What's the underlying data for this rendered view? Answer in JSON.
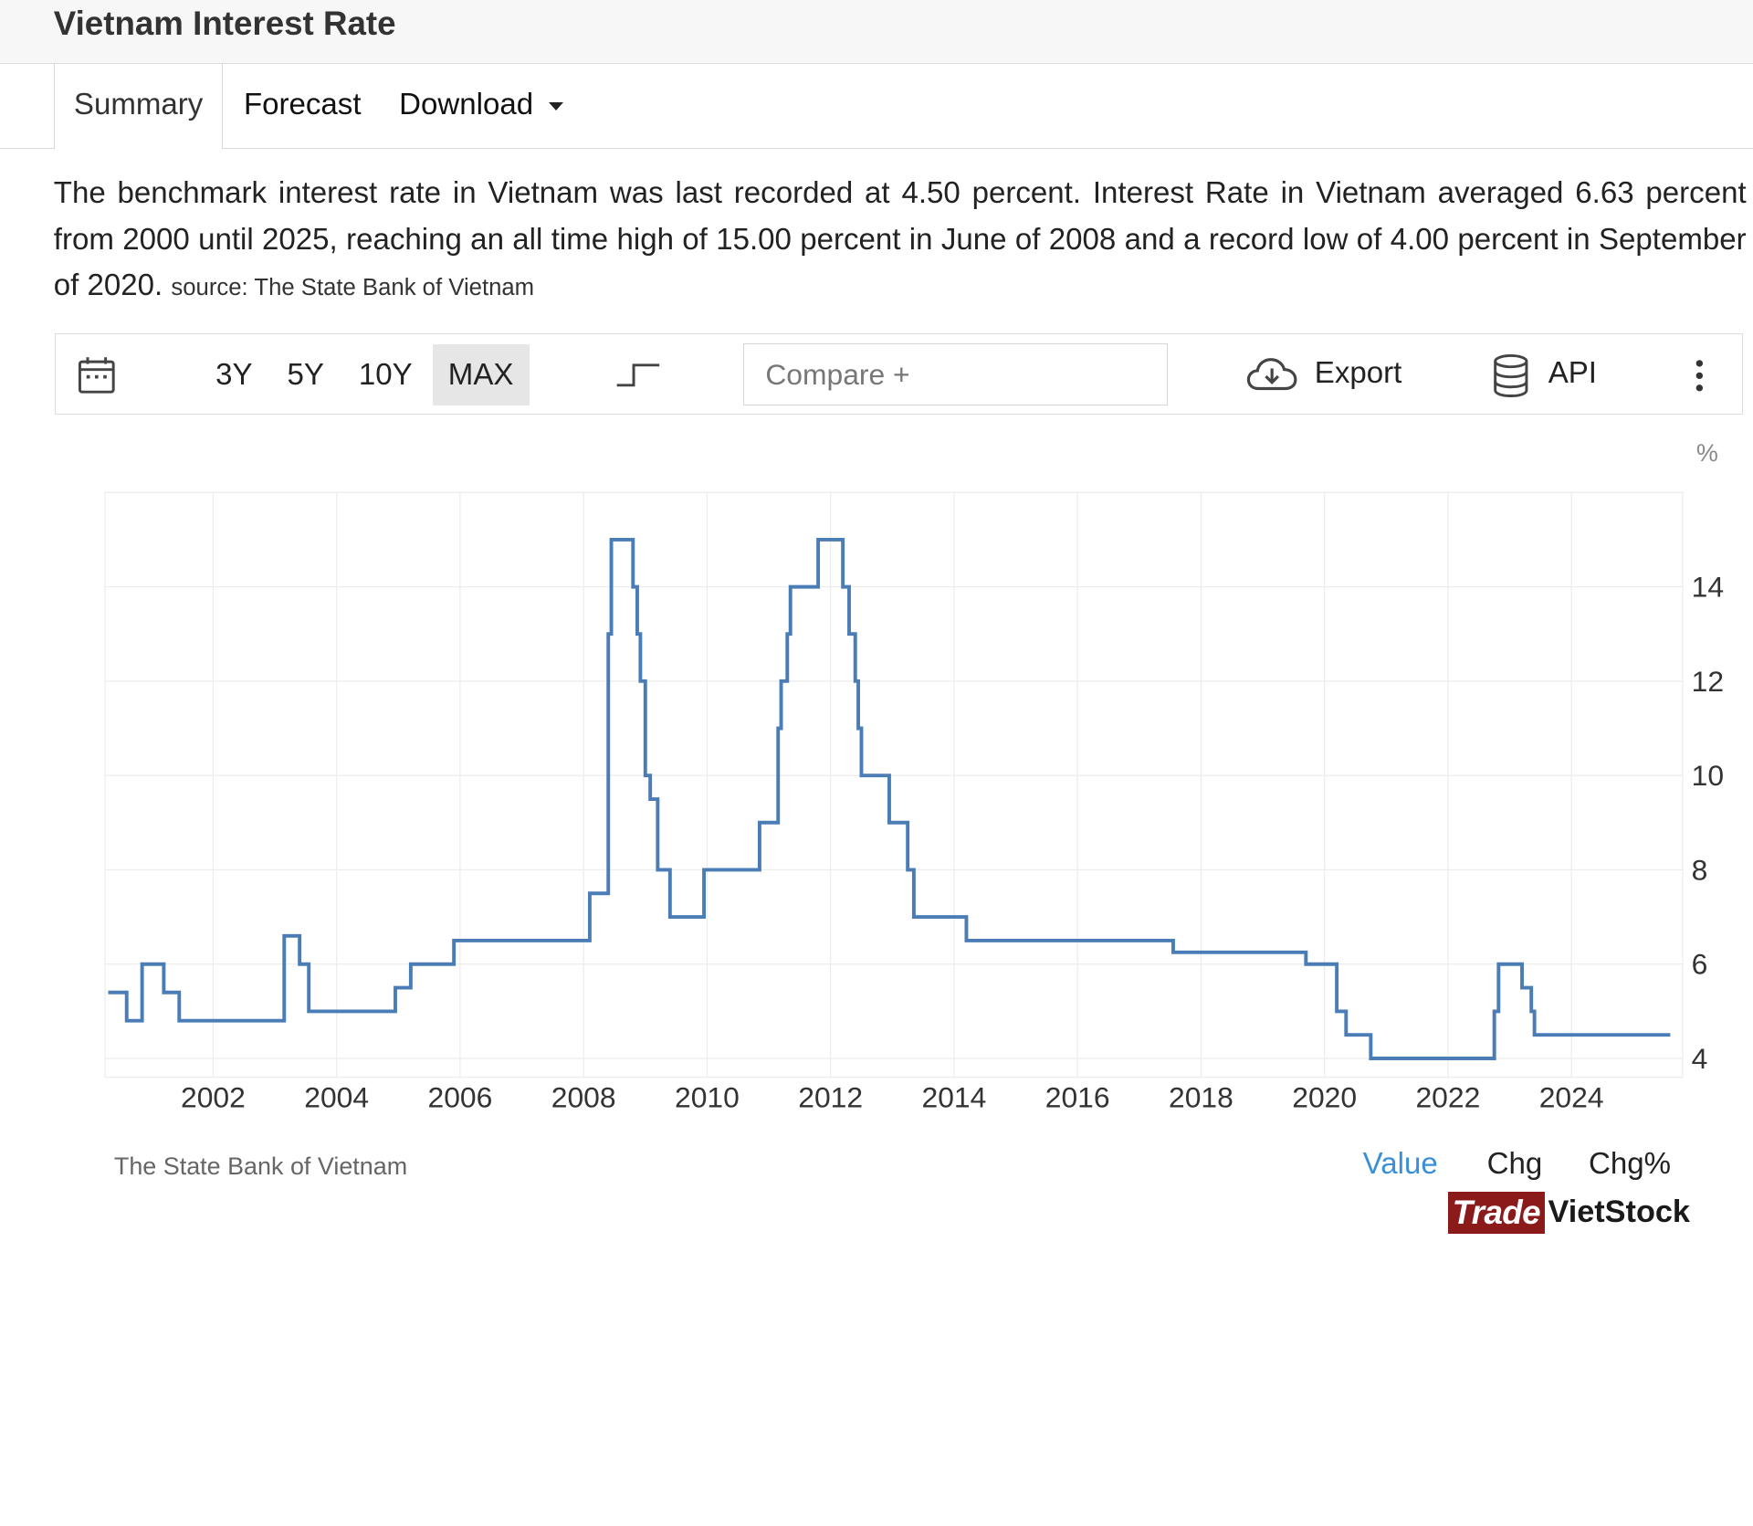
{
  "page_title": "Vietnam Interest Rate",
  "tabs": [
    {
      "label": "Summary"
    },
    {
      "label": "Forecast"
    },
    {
      "label": "Download"
    }
  ],
  "description": "The benchmark interest rate in Vietnam was last recorded at 4.50 percent. Interest Rate in Vietnam averaged 6.63 percent from 2000 until 2025, reaching an all time high of 15.00 percent in June of 2008 and a record low of 4.00 percent in September of 2020.",
  "source_text": "source: The State Bank of Vietnam",
  "toolbar": {
    "ranges": [
      "3Y",
      "5Y",
      "10Y",
      "MAX"
    ],
    "active_range": "MAX",
    "compare_placeholder": "Compare +",
    "export_label": "Export",
    "api_label": "API",
    "icons": [
      "calendar-icon",
      "step-chart-icon",
      "cloud-download-icon",
      "database-icon",
      "more-vertical-icon"
    ]
  },
  "chart_footer": {
    "source": "The State Bank of Vietnam",
    "value_tab": "Value",
    "chg_tab": "Chg",
    "chg_pct_tab": "Chg%"
  },
  "brand": {
    "part1": "Trade",
    "part2": "VietStock"
  },
  "colors": {
    "line": "#4a7db5",
    "active_tab": "#3a8fd8",
    "brand_red": "#8b1a1a"
  },
  "chart_data": {
    "type": "line",
    "step": true,
    "unit": "%",
    "x_ticks": [
      "2002",
      "2004",
      "2006",
      "2008",
      "2010",
      "2012",
      "2014",
      "2016",
      "2018",
      "2020",
      "2022",
      "2024"
    ],
    "y_ticks": [
      "4",
      "6",
      "8",
      "10",
      "12",
      "14"
    ],
    "xlim": [
      2000.25,
      2025.8
    ],
    "ylim": [
      3.6,
      16.0
    ],
    "grid": true,
    "series": [
      {
        "points": [
          [
            2000.3,
            5.4
          ],
          [
            2000.6,
            4.8
          ],
          [
            2000.85,
            6.0
          ],
          [
            2001.2,
            5.4
          ],
          [
            2001.45,
            4.8
          ],
          [
            2003.15,
            6.6
          ],
          [
            2003.4,
            6.0
          ],
          [
            2003.55,
            5.0
          ],
          [
            2004.95,
            5.5
          ],
          [
            2005.2,
            6.0
          ],
          [
            2005.9,
            6.5
          ],
          [
            2008.1,
            7.5
          ],
          [
            2008.4,
            13.0
          ],
          [
            2008.45,
            15.0
          ],
          [
            2008.8,
            14.0
          ],
          [
            2008.87,
            13.0
          ],
          [
            2008.92,
            12.0
          ],
          [
            2009.0,
            10.0
          ],
          [
            2009.08,
            9.5
          ],
          [
            2009.2,
            8.0
          ],
          [
            2009.4,
            7.0
          ],
          [
            2009.95,
            8.0
          ],
          [
            2010.85,
            9.0
          ],
          [
            2011.15,
            11.0
          ],
          [
            2011.2,
            12.0
          ],
          [
            2011.3,
            13.0
          ],
          [
            2011.35,
            14.0
          ],
          [
            2011.8,
            15.0
          ],
          [
            2012.2,
            14.0
          ],
          [
            2012.3,
            13.0
          ],
          [
            2012.4,
            12.0
          ],
          [
            2012.45,
            11.0
          ],
          [
            2012.5,
            10.0
          ],
          [
            2012.95,
            9.0
          ],
          [
            2013.25,
            8.0
          ],
          [
            2013.35,
            7.0
          ],
          [
            2014.2,
            6.5
          ],
          [
            2017.55,
            6.25
          ],
          [
            2019.7,
            6.0
          ],
          [
            2020.2,
            5.0
          ],
          [
            2020.35,
            4.5
          ],
          [
            2020.75,
            4.0
          ],
          [
            2022.75,
            5.0
          ],
          [
            2022.82,
            6.0
          ],
          [
            2023.2,
            5.5
          ],
          [
            2023.35,
            5.0
          ],
          [
            2023.4,
            4.5
          ],
          [
            2025.6,
            4.5
          ]
        ]
      }
    ]
  }
}
